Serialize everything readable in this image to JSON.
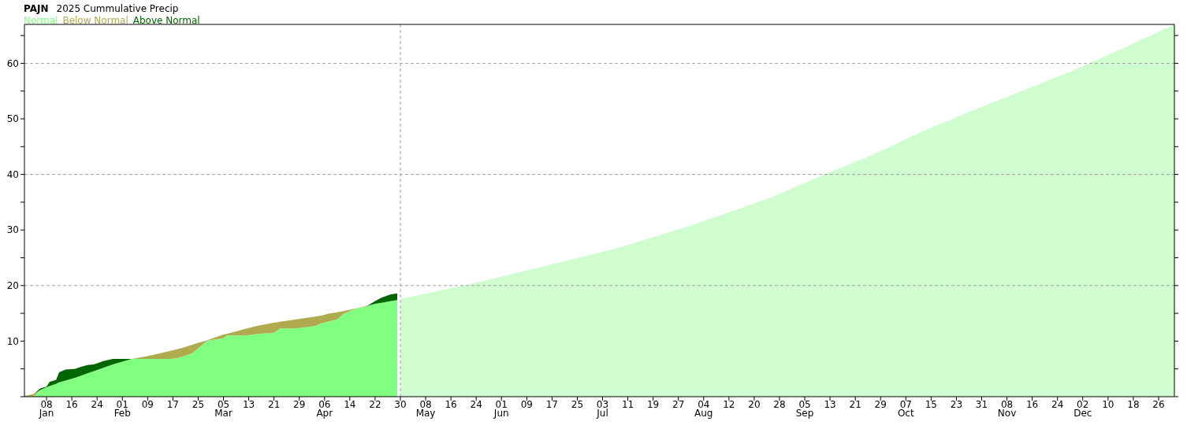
{
  "chart_data": {
    "type": "area",
    "title": "PAJN",
    "subtitle": "2025 Cummulative Precip",
    "stacked": true,
    "legend": "top left",
    "x": [
      "2025-01-01",
      "2025-01-04",
      "2025-01-06",
      "2025-01-08",
      "2025-01-09",
      "2025-01-11",
      "2025-01-12",
      "2025-01-14",
      "2025-01-17",
      "2025-01-19",
      "2025-01-21",
      "2025-01-23",
      "2025-01-26",
      "2025-01-29",
      "2025-02-01",
      "2025-02-04",
      "2025-02-08",
      "2025-02-12",
      "2025-02-16",
      "2025-02-18",
      "2025-02-20",
      "2025-02-23",
      "2025-02-25",
      "2025-02-27",
      "2025-02-28",
      "2025-03-05",
      "2025-03-06",
      "2025-03-12",
      "2025-03-16",
      "2025-03-21",
      "2025-03-22",
      "2025-03-23",
      "2025-03-28",
      "2025-04-03",
      "2025-04-05",
      "2025-04-07",
      "2025-04-10",
      "2025-04-12",
      "2025-04-16",
      "2025-04-19",
      "2025-04-20",
      "2025-04-22",
      "2025-04-24",
      "2025-04-27",
      "2025-04-29",
      "2025-04-30",
      "2025-05-21",
      "2025-06-14",
      "2025-07-08",
      "2025-08-01",
      "2025-08-25",
      "2025-09-10",
      "2025-09-26",
      "2025-10-12",
      "2025-10-28",
      "2025-11-13",
      "2025-11-29",
      "2025-12-15",
      "2025-12-31"
    ],
    "series": [
      {
        "name": "Normal",
        "color": "#80ff80",
        "values": [
          0,
          0.1,
          1.2,
          1.7,
          1.9,
          2.3,
          2.6,
          2.9,
          3.4,
          3.8,
          4.2,
          4.6,
          5.2,
          5.8,
          6.3,
          6.8,
          6.8,
          6.8,
          6.8,
          6.9,
          7.2,
          7.8,
          8.7,
          9.7,
          10.1,
          10.5,
          11.0,
          11.0,
          11.3,
          11.5,
          11.9,
          12.3,
          12.3,
          12.7,
          13.2,
          13.5,
          13.9,
          14.9,
          15.9,
          16.2,
          16.4,
          16.7,
          16.9,
          17.2,
          17.4,
          null,
          null,
          null,
          null,
          null,
          null,
          null,
          null,
          null,
          null,
          null,
          null,
          null,
          null
        ]
      },
      {
        "name": "Below Normal",
        "color": "#b0aa4e",
        "values": [
          0.1,
          0.4,
          0,
          null,
          null,
          null,
          null,
          null,
          null,
          null,
          null,
          null,
          null,
          null,
          null,
          0,
          0.4,
          0.9,
          1.4,
          1.6,
          1.6,
          1.5,
          1.0,
          0.3,
          0.1,
          0.7,
          0.3,
          1.2,
          1.5,
          1.8,
          1.5,
          1.2,
          1.6,
          1.7,
          1.4,
          1.4,
          1.3,
          0.5,
          0,
          0.1,
          0,
          null,
          null,
          null,
          null,
          null,
          null,
          null,
          null,
          null,
          null,
          null,
          null,
          null,
          null,
          null,
          null,
          null,
          null
        ]
      },
      {
        "name": "Above Normal",
        "color": "#006600",
        "values": [
          null,
          0,
          0.3,
          0.1,
          0.8,
          0.7,
          1.8,
          2.0,
          1.6,
          1.6,
          1.5,
          1.2,
          1.2,
          1.0,
          0.5,
          0,
          null,
          null,
          null,
          null,
          null,
          null,
          null,
          null,
          null,
          null,
          null,
          null,
          null,
          null,
          null,
          null,
          null,
          null,
          null,
          null,
          null,
          null,
          null,
          0,
          0.1,
          0.5,
          0.9,
          1.2,
          1.2,
          null,
          null,
          null,
          null,
          null,
          null,
          null,
          null,
          null,
          null,
          null,
          null,
          null,
          null
        ]
      },
      {
        "color": "#d0fdd0",
        "values": [
          null,
          null,
          null,
          null,
          null,
          null,
          null,
          null,
          null,
          null,
          null,
          null,
          null,
          null,
          null,
          null,
          null,
          null,
          null,
          null,
          null,
          null,
          null,
          null,
          null,
          null,
          null,
          null,
          null,
          null,
          null,
          null,
          null,
          null,
          null,
          null,
          null,
          null,
          null,
          null,
          null,
          null,
          null,
          null,
          null,
          17.6,
          20.1,
          23.4,
          26.8,
          31.0,
          35.8,
          39.7,
          43.4,
          47.7,
          51.5,
          55.1,
          58.7,
          62.8,
          67.0
        ]
      }
    ],
    "xlim": [
      "2025-01-01",
      "2025-12-31"
    ],
    "xticks": [
      {
        "value": "2025-01-08",
        "label": "08\nJan"
      },
      {
        "value": "2025-01-16",
        "label": "16"
      },
      {
        "value": "2025-01-24",
        "label": "24"
      },
      {
        "value": "2025-02-01",
        "label": "01\nFeb"
      },
      {
        "value": "2025-02-09",
        "label": "09"
      },
      {
        "value": "2025-02-17",
        "label": "17"
      },
      {
        "value": "2025-02-25",
        "label": "25"
      },
      {
        "value": "2025-03-05",
        "label": "05\nMar"
      },
      {
        "value": "2025-03-13",
        "label": "13"
      },
      {
        "value": "2025-03-21",
        "label": "21"
      },
      {
        "value": "2025-03-29",
        "label": "29"
      },
      {
        "value": "2025-04-06",
        "label": "06\nApr"
      },
      {
        "value": "2025-04-14",
        "label": "14"
      },
      {
        "value": "2025-04-22",
        "label": "22"
      },
      {
        "value": "2025-04-30",
        "label": "30"
      },
      {
        "value": "2025-05-08",
        "label": "08\nMay"
      },
      {
        "value": "2025-05-16",
        "label": "16"
      },
      {
        "value": "2025-05-24",
        "label": "24"
      },
      {
        "value": "2025-06-01",
        "label": "01\nJun"
      },
      {
        "value": "2025-06-09",
        "label": "09"
      },
      {
        "value": "2025-06-17",
        "label": "17"
      },
      {
        "value": "2025-06-25",
        "label": "25"
      },
      {
        "value": "2025-07-03",
        "label": "03\nJul"
      },
      {
        "value": "2025-07-11",
        "label": "11"
      },
      {
        "value": "2025-07-19",
        "label": "19"
      },
      {
        "value": "2025-07-27",
        "label": "27"
      },
      {
        "value": "2025-08-04",
        "label": "04\nAug"
      },
      {
        "value": "2025-08-12",
        "label": "12"
      },
      {
        "value": "2025-08-20",
        "label": "20"
      },
      {
        "value": "2025-08-28",
        "label": "28"
      },
      {
        "value": "2025-09-05",
        "label": "05\nSep"
      },
      {
        "value": "2025-09-13",
        "label": "13"
      },
      {
        "value": "2025-09-21",
        "label": "21"
      },
      {
        "value": "2025-09-29",
        "label": "29"
      },
      {
        "value": "2025-10-07",
        "label": "07\nOct"
      },
      {
        "value": "2025-10-15",
        "label": "15"
      },
      {
        "value": "2025-10-23",
        "label": "23"
      },
      {
        "value": "2025-10-31",
        "label": "31"
      },
      {
        "value": "2025-11-08",
        "label": "08\nNov"
      },
      {
        "value": "2025-11-16",
        "label": "16"
      },
      {
        "value": "2025-11-24",
        "label": "24"
      },
      {
        "value": "2025-12-02",
        "label": "02\nDec"
      },
      {
        "value": "2025-12-10",
        "label": "10"
      },
      {
        "value": "2025-12-18",
        "label": "18"
      },
      {
        "value": "2025-12-26",
        "label": "26"
      }
    ],
    "ylim": [
      0,
      67
    ],
    "yticks": [
      {
        "value": 0,
        "label": null
      },
      {
        "value": 5,
        "label": null
      },
      10,
      {
        "value": 15,
        "label": null
      },
      20,
      {
        "value": 25,
        "label": null
      },
      30,
      {
        "value": 35,
        "label": null
      },
      40,
      {
        "value": 45,
        "label": null
      },
      50,
      {
        "value": 55,
        "label": null
      },
      60,
      {
        "value": 65,
        "label": null
      }
    ],
    "ref_lines": [
      {
        "axis": "y",
        "value": 20,
        "color": "#a0a0a0",
        "line_style": "dashed"
      },
      {
        "axis": "y",
        "value": 40,
        "color": "#a0a0a0",
        "line_style": "dashed"
      },
      {
        "axis": "y",
        "value": 60,
        "color": "#a0a0a0",
        "line_style": "dashed"
      },
      {
        "axis": "x",
        "value": "2025-04-30",
        "color": "#a0a0a0",
        "line_style": "dashed"
      }
    ]
  }
}
